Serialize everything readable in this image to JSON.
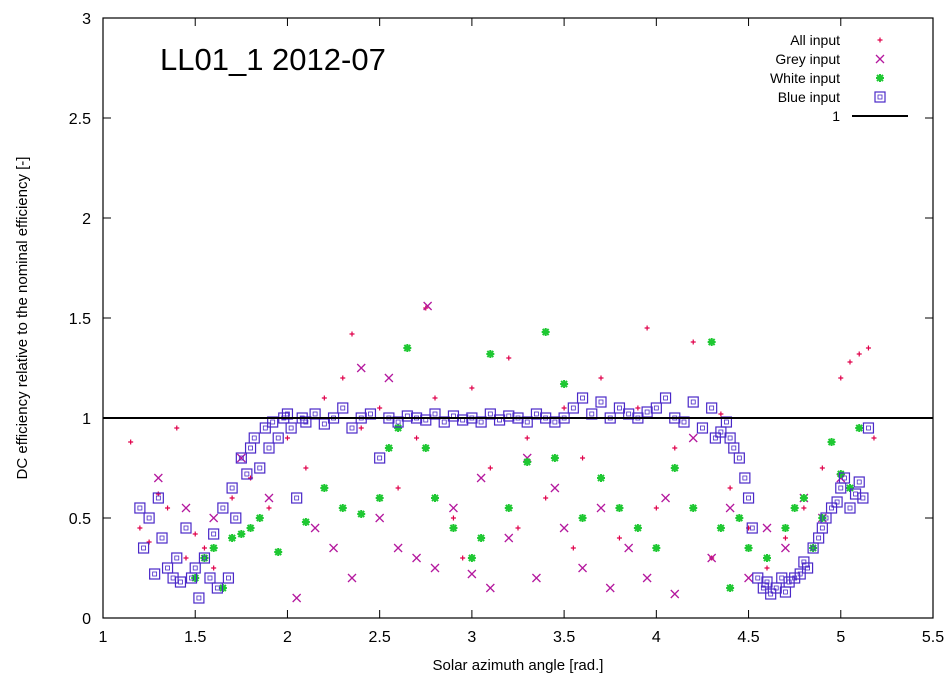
{
  "chart_data": {
    "type": "scatter",
    "title": "LL01_1 2012-07",
    "xlabel": "Solar azimuth angle [rad.]",
    "ylabel": "DC efficiency relative to the nominal efficiency [-]",
    "xlim": [
      1,
      5.5
    ],
    "ylim": [
      0,
      3
    ],
    "xticks": [
      1,
      1.5,
      2,
      2.5,
      3,
      3.5,
      4,
      4.5,
      5,
      5.5
    ],
    "yticks": [
      0,
      0.5,
      1,
      1.5,
      2,
      2.5,
      3
    ],
    "xtick_labels": [
      "1",
      "1.5",
      "2",
      "2.5",
      "3",
      "3.5",
      "4",
      "4.5",
      "5",
      "5.5"
    ],
    "ytick_labels": [
      "0",
      "0.5",
      "1",
      "1.5",
      "2",
      "2.5",
      "3"
    ],
    "legend_position": "top-right",
    "series": [
      {
        "name": "All input",
        "marker": "plus",
        "color": "#e0004a",
        "points": [
          [
            1.15,
            0.88
          ],
          [
            1.2,
            0.45
          ],
          [
            1.25,
            0.38
          ],
          [
            1.3,
            0.62
          ],
          [
            1.35,
            0.55
          ],
          [
            1.4,
            0.95
          ],
          [
            1.45,
            0.3
          ],
          [
            1.5,
            0.42
          ],
          [
            1.55,
            0.35
          ],
          [
            1.6,
            0.25
          ],
          [
            1.7,
            0.6
          ],
          [
            1.8,
            0.7
          ],
          [
            1.9,
            0.55
          ],
          [
            2.0,
            0.9
          ],
          [
            2.1,
            0.75
          ],
          [
            2.2,
            1.1
          ],
          [
            2.3,
            1.2
          ],
          [
            2.35,
            1.42
          ],
          [
            2.4,
            0.95
          ],
          [
            2.5,
            1.05
          ],
          [
            2.6,
            0.65
          ],
          [
            2.65,
            1.35
          ],
          [
            2.7,
            0.9
          ],
          [
            2.75,
            1.55
          ],
          [
            2.8,
            1.1
          ],
          [
            2.9,
            0.5
          ],
          [
            2.95,
            0.3
          ],
          [
            3.0,
            1.15
          ],
          [
            3.1,
            0.75
          ],
          [
            3.2,
            1.3
          ],
          [
            3.25,
            0.45
          ],
          [
            3.3,
            0.9
          ],
          [
            3.4,
            0.6
          ],
          [
            3.5,
            1.05
          ],
          [
            3.55,
            0.35
          ],
          [
            3.6,
            0.8
          ],
          [
            3.7,
            1.2
          ],
          [
            3.8,
            0.4
          ],
          [
            3.9,
            1.05
          ],
          [
            3.95,
            1.45
          ],
          [
            4.0,
            0.55
          ],
          [
            4.1,
            0.85
          ],
          [
            4.2,
            1.38
          ],
          [
            4.3,
            0.3
          ],
          [
            4.35,
            1.02
          ],
          [
            4.4,
            0.65
          ],
          [
            4.5,
            0.45
          ],
          [
            4.6,
            0.25
          ],
          [
            4.7,
            0.4
          ],
          [
            4.8,
            0.55
          ],
          [
            4.9,
            0.75
          ],
          [
            5.0,
            1.2
          ],
          [
            5.05,
            1.28
          ],
          [
            5.1,
            1.32
          ],
          [
            5.15,
            1.35
          ],
          [
            5.18,
            0.9
          ]
        ]
      },
      {
        "name": "Grey input",
        "marker": "cross",
        "color": "#b4189e",
        "points": [
          [
            1.3,
            0.7
          ],
          [
            1.45,
            0.55
          ],
          [
            1.6,
            0.5
          ],
          [
            1.75,
            0.8
          ],
          [
            1.9,
            0.6
          ],
          [
            2.05,
            0.1
          ],
          [
            2.15,
            0.45
          ],
          [
            2.25,
            0.35
          ],
          [
            2.35,
            0.2
          ],
          [
            2.4,
            1.25
          ],
          [
            2.5,
            0.5
          ],
          [
            2.55,
            1.2
          ],
          [
            2.6,
            0.35
          ],
          [
            2.7,
            0.3
          ],
          [
            2.76,
            1.56
          ],
          [
            2.8,
            0.25
          ],
          [
            2.9,
            0.55
          ],
          [
            3.0,
            0.22
          ],
          [
            3.05,
            0.7
          ],
          [
            3.1,
            0.15
          ],
          [
            3.2,
            0.4
          ],
          [
            3.3,
            0.8
          ],
          [
            3.35,
            0.2
          ],
          [
            3.45,
            0.65
          ],
          [
            3.5,
            0.45
          ],
          [
            3.6,
            0.25
          ],
          [
            3.7,
            0.55
          ],
          [
            3.75,
            0.15
          ],
          [
            3.85,
            0.35
          ],
          [
            3.95,
            0.2
          ],
          [
            4.05,
            0.6
          ],
          [
            4.1,
            0.12
          ],
          [
            4.2,
            0.9
          ],
          [
            4.3,
            0.3
          ],
          [
            4.4,
            0.55
          ],
          [
            4.5,
            0.2
          ],
          [
            4.6,
            0.45
          ],
          [
            4.7,
            0.35
          ],
          [
            4.8,
            0.6
          ],
          [
            4.9,
            0.5
          ],
          [
            5.0,
            0.7
          ]
        ]
      },
      {
        "name": "White input",
        "marker": "star",
        "color": "#1ec832",
        "points": [
          [
            1.5,
            0.2
          ],
          [
            1.55,
            0.3
          ],
          [
            1.6,
            0.35
          ],
          [
            1.65,
            0.15
          ],
          [
            1.7,
            0.4
          ],
          [
            1.75,
            0.42
          ],
          [
            1.8,
            0.45
          ],
          [
            1.85,
            0.5
          ],
          [
            1.95,
            0.33
          ],
          [
            2.1,
            0.48
          ],
          [
            2.2,
            0.65
          ],
          [
            2.3,
            0.55
          ],
          [
            2.4,
            0.52
          ],
          [
            2.5,
            0.6
          ],
          [
            2.55,
            0.85
          ],
          [
            2.6,
            0.95
          ],
          [
            2.65,
            1.35
          ],
          [
            2.75,
            0.85
          ],
          [
            2.8,
            0.6
          ],
          [
            2.9,
            0.45
          ],
          [
            3.0,
            0.3
          ],
          [
            3.05,
            0.4
          ],
          [
            3.1,
            1.32
          ],
          [
            3.2,
            0.55
          ],
          [
            3.3,
            0.78
          ],
          [
            3.4,
            1.43
          ],
          [
            3.45,
            0.8
          ],
          [
            3.5,
            1.17
          ],
          [
            3.6,
            0.5
          ],
          [
            3.7,
            0.7
          ],
          [
            3.8,
            0.55
          ],
          [
            3.9,
            0.45
          ],
          [
            4.0,
            0.35
          ],
          [
            4.1,
            0.75
          ],
          [
            4.2,
            0.55
          ],
          [
            4.3,
            1.38
          ],
          [
            4.35,
            0.45
          ],
          [
            4.4,
            0.15
          ],
          [
            4.45,
            0.5
          ],
          [
            4.5,
            0.35
          ],
          [
            4.6,
            0.3
          ],
          [
            4.7,
            0.45
          ],
          [
            4.75,
            0.55
          ],
          [
            4.8,
            0.6
          ],
          [
            4.85,
            0.35
          ],
          [
            4.9,
            0.5
          ],
          [
            4.95,
            0.88
          ],
          [
            5.0,
            0.72
          ],
          [
            5.05,
            0.65
          ],
          [
            5.1,
            0.95
          ]
        ]
      },
      {
        "name": "Blue input",
        "marker": "square",
        "color": "#4a28c8",
        "points": [
          [
            1.2,
            0.55
          ],
          [
            1.22,
            0.35
          ],
          [
            1.25,
            0.5
          ],
          [
            1.28,
            0.22
          ],
          [
            1.3,
            0.6
          ],
          [
            1.32,
            0.4
          ],
          [
            1.35,
            0.25
          ],
          [
            1.38,
            0.2
          ],
          [
            1.4,
            0.3
          ],
          [
            1.42,
            0.18
          ],
          [
            1.45,
            0.45
          ],
          [
            1.48,
            0.2
          ],
          [
            1.5,
            0.25
          ],
          [
            1.52,
            0.1
          ],
          [
            1.55,
            0.3
          ],
          [
            1.58,
            0.2
          ],
          [
            1.6,
            0.42
          ],
          [
            1.62,
            0.15
          ],
          [
            1.65,
            0.55
          ],
          [
            1.68,
            0.2
          ],
          [
            1.7,
            0.65
          ],
          [
            1.72,
            0.5
          ],
          [
            1.75,
            0.8
          ],
          [
            1.78,
            0.72
          ],
          [
            1.8,
            0.85
          ],
          [
            1.82,
            0.9
          ],
          [
            1.85,
            0.75
          ],
          [
            1.88,
            0.95
          ],
          [
            1.9,
            0.85
          ],
          [
            1.92,
            0.98
          ],
          [
            1.95,
            0.9
          ],
          [
            1.98,
            1.0
          ],
          [
            2.0,
            1.02
          ],
          [
            2.02,
            0.95
          ],
          [
            2.05,
            0.6
          ],
          [
            2.08,
            1.0
          ],
          [
            2.1,
            0.98
          ],
          [
            2.15,
            1.02
          ],
          [
            2.2,
            0.97
          ],
          [
            2.25,
            1.0
          ],
          [
            2.3,
            1.05
          ],
          [
            2.35,
            0.95
          ],
          [
            2.4,
            1.0
          ],
          [
            2.45,
            1.02
          ],
          [
            2.5,
            0.8
          ],
          [
            2.55,
            1.0
          ],
          [
            2.6,
            0.98
          ],
          [
            2.65,
            1.01
          ],
          [
            2.7,
            1.0
          ],
          [
            2.75,
            0.99
          ],
          [
            2.8,
            1.02
          ],
          [
            2.85,
            0.98
          ],
          [
            2.9,
            1.01
          ],
          [
            2.95,
            0.99
          ],
          [
            3.0,
            1.0
          ],
          [
            3.05,
            0.98
          ],
          [
            3.1,
            1.02
          ],
          [
            3.15,
            0.99
          ],
          [
            3.2,
            1.01
          ],
          [
            3.25,
            1.0
          ],
          [
            3.3,
            0.98
          ],
          [
            3.35,
            1.02
          ],
          [
            3.4,
            1.0
          ],
          [
            3.45,
            0.98
          ],
          [
            3.5,
            1.0
          ],
          [
            3.55,
            1.05
          ],
          [
            3.6,
            1.1
          ],
          [
            3.65,
            1.02
          ],
          [
            3.7,
            1.08
          ],
          [
            3.75,
            1.0
          ],
          [
            3.8,
            1.05
          ],
          [
            3.85,
            1.02
          ],
          [
            3.9,
            1.0
          ],
          [
            3.95,
            1.03
          ],
          [
            4.0,
            1.05
          ],
          [
            4.05,
            1.1
          ],
          [
            4.1,
            1.0
          ],
          [
            4.15,
            0.98
          ],
          [
            4.2,
            1.08
          ],
          [
            4.25,
            0.95
          ],
          [
            4.3,
            1.05
          ],
          [
            4.32,
            0.9
          ],
          [
            4.35,
            0.93
          ],
          [
            4.38,
            0.98
          ],
          [
            4.4,
            0.9
          ],
          [
            4.42,
            0.85
          ],
          [
            4.45,
            0.8
          ],
          [
            4.48,
            0.7
          ],
          [
            4.5,
            0.6
          ],
          [
            4.52,
            0.45
          ],
          [
            4.55,
            0.2
          ],
          [
            4.58,
            0.15
          ],
          [
            4.6,
            0.18
          ],
          [
            4.62,
            0.12
          ],
          [
            4.65,
            0.15
          ],
          [
            4.68,
            0.2
          ],
          [
            4.7,
            0.13
          ],
          [
            4.72,
            0.18
          ],
          [
            4.75,
            0.2
          ],
          [
            4.78,
            0.22
          ],
          [
            4.8,
            0.28
          ],
          [
            4.82,
            0.25
          ],
          [
            4.85,
            0.35
          ],
          [
            4.88,
            0.4
          ],
          [
            4.9,
            0.45
          ],
          [
            4.92,
            0.5
          ],
          [
            4.95,
            0.55
          ],
          [
            4.98,
            0.58
          ],
          [
            5.0,
            0.65
          ],
          [
            5.02,
            0.7
          ],
          [
            5.05,
            0.55
          ],
          [
            5.08,
            0.62
          ],
          [
            5.1,
            0.68
          ],
          [
            5.12,
            0.6
          ],
          [
            5.15,
            0.95
          ]
        ]
      },
      {
        "name": "1",
        "type": "line",
        "color": "#000000",
        "y": 1
      }
    ]
  }
}
